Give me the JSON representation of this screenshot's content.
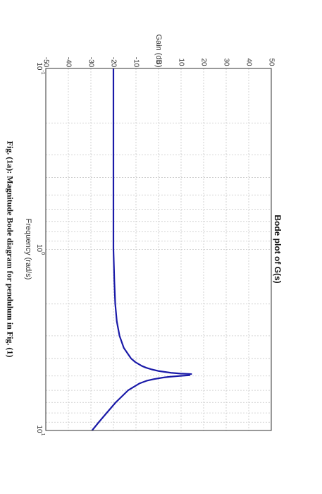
{
  "figure_caption": "Fig. (1a): Magnitude Bode diagram for pendulum in Fig. (1)",
  "chart_data": {
    "type": "line",
    "title": "Bode plot of G(s)",
    "xlabel": "Frequency (rad/s)",
    "ylabel": "Gain (dB)",
    "xscale": "log",
    "xlim": [
      0.1,
      10
    ],
    "ylim": [
      -50,
      50
    ],
    "x_tick_labels": [
      {
        "base": "10",
        "exp": "-1"
      },
      {
        "base": "10",
        "exp": "0"
      },
      {
        "base": "10",
        "exp": "1"
      }
    ],
    "y_ticks": [
      -50,
      -40,
      -30,
      -20,
      -10,
      0,
      10,
      20,
      30,
      40,
      50
    ],
    "grid": true,
    "orientation": "rotated 90° clockwise on page",
    "line_color": "#1a1aa8",
    "series": [
      {
        "x": [
          0.1,
          0.2,
          0.5,
          1.0,
          1.5,
          2.0,
          2.5,
          3.0,
          3.5,
          4.0,
          4.2,
          4.4,
          4.5,
          4.6,
          4.7,
          4.8,
          4.85,
          4.88
        ],
        "y": [
          -20,
          -20,
          -20,
          -20,
          -19.6,
          -19.2,
          -18.5,
          -17.3,
          -15.4,
          -12.2,
          -10.2,
          -7.4,
          -5.5,
          -3.0,
          0.3,
          5.5,
          9.8,
          14.8
        ]
      },
      {
        "x": [
          4.95,
          5.0,
          5.05,
          5.1,
          5.2,
          5.3,
          5.5,
          6.0,
          7.0,
          8.0,
          9.0,
          10.0
        ],
        "y": [
          14.0,
          9.0,
          5.0,
          2.0,
          -2.0,
          -5.0,
          -8.5,
          -13.5,
          -19.0,
          -23.0,
          -26.5,
          -29.5
        ]
      }
    ]
  }
}
